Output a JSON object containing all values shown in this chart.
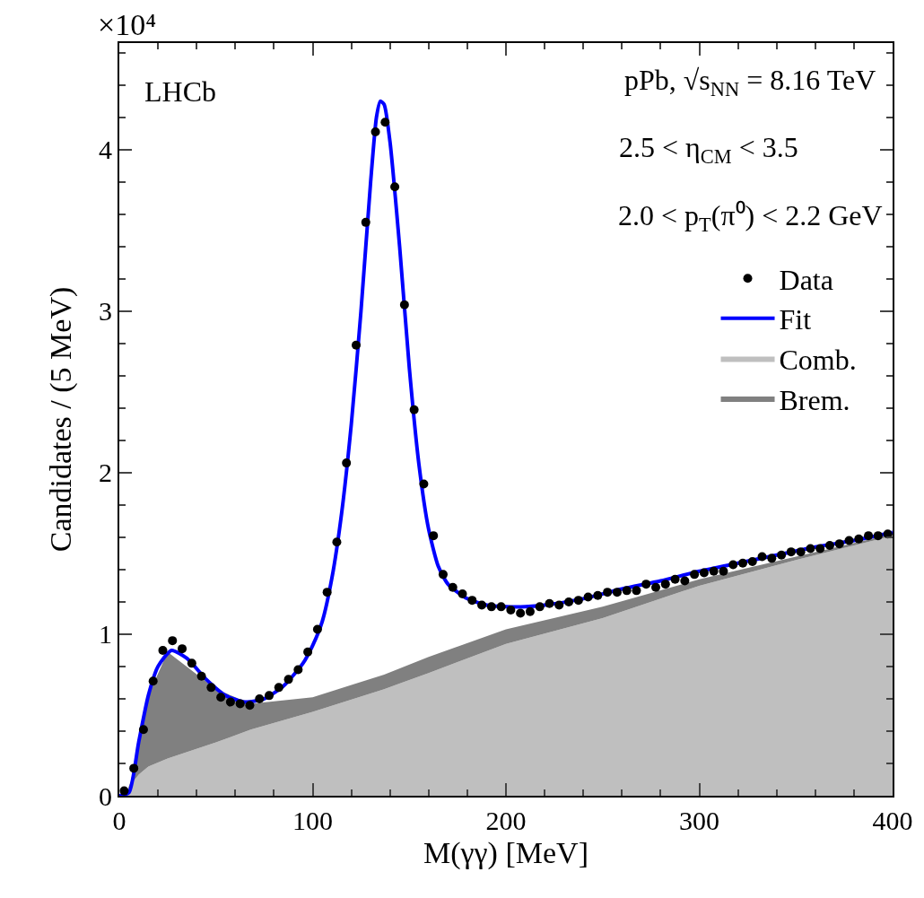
{
  "chart_data": {
    "type": "scatter",
    "xlabel": "M(γγ) [MeV]",
    "ylabel": "Candidates / (5 MeV)",
    "annotations": [
      "×10⁴",
      "LHCb",
      "pPb, √s$_{NN}$ = 8.16 TeV",
      "2.5 < η$_{CM}$ < 3.5",
      "2.0 < p$_{T}$(π⁰) < 2.2 GeV"
    ],
    "xlim": [
      0,
      400
    ],
    "xticks": [
      0,
      100,
      200,
      300,
      400
    ],
    "ylim": [
      0,
      4.66
    ],
    "yticks": [
      0,
      1,
      2,
      3,
      4
    ],
    "legend": "top right",
    "stacked": true,
    "series": [
      {
        "name": "Data",
        "marker": "circle",
        "color": "#000000",
        "x": [
          2.5,
          7.5,
          12.5,
          17.5,
          22.5,
          27.5,
          32.5,
          37.5,
          42.5,
          47.5,
          52.5,
          57.5,
          62.5,
          67.5,
          72.5,
          77.5,
          82.5,
          87.5,
          92.5,
          97.5,
          102.5,
          107.5,
          112.5,
          117.5,
          122.5,
          127.5,
          132.5,
          137.5,
          142.5,
          147.5,
          152.5,
          157.5,
          162.5,
          167.5,
          172.5,
          177.5,
          182.5,
          187.5,
          192.5,
          197.5,
          202.5,
          207.5,
          212.5,
          217.5,
          222.5,
          227.5,
          232.5,
          237.5,
          242.5,
          247.5,
          252.5,
          257.5,
          262.5,
          267.5,
          272.5,
          277.5,
          282.5,
          287.5,
          292.5,
          297.5,
          302.5,
          307.5,
          312.5,
          317.5,
          322.5,
          327.5,
          332.5,
          337.5,
          342.5,
          347.5,
          352.5,
          357.5,
          362.5,
          367.5,
          372.5,
          377.5,
          382.5,
          387.5,
          392.5,
          397.5
        ],
        "values": [
          0.03,
          0.17,
          0.41,
          0.71,
          0.9,
          0.96,
          0.91,
          0.82,
          0.74,
          0.67,
          0.61,
          0.58,
          0.57,
          0.56,
          0.6,
          0.62,
          0.67,
          0.72,
          0.78,
          0.89,
          1.03,
          1.26,
          1.57,
          2.06,
          2.79,
          3.55,
          4.11,
          4.17,
          3.77,
          3.04,
          2.39,
          1.93,
          1.61,
          1.37,
          1.29,
          1.25,
          1.21,
          1.18,
          1.17,
          1.17,
          1.15,
          1.13,
          1.14,
          1.17,
          1.19,
          1.18,
          1.2,
          1.21,
          1.23,
          1.24,
          1.26,
          1.26,
          1.27,
          1.27,
          1.31,
          1.29,
          1.31,
          1.34,
          1.33,
          1.37,
          1.38,
          1.39,
          1.39,
          1.43,
          1.44,
          1.45,
          1.48,
          1.47,
          1.49,
          1.51,
          1.51,
          1.53,
          1.53,
          1.55,
          1.56,
          1.58,
          1.59,
          1.61,
          1.61,
          1.62
        ]
      },
      {
        "name": "Fit",
        "type": "line",
        "line_style": "solid",
        "color": "#0000ff",
        "x": [
          0,
          5,
          10,
          15,
          20,
          27,
          35,
          45,
          55,
          65,
          75,
          85,
          95,
          100,
          105,
          110,
          115,
          120,
          125,
          130,
          133,
          135,
          137,
          140,
          145,
          150,
          155,
          160,
          165,
          170,
          180,
          190,
          200,
          210,
          220,
          240,
          260,
          280,
          300,
          320,
          340,
          360,
          380,
          400
        ],
        "values": [
          0,
          0.02,
          0.33,
          0.62,
          0.8,
          0.9,
          0.85,
          0.72,
          0.62,
          0.58,
          0.6,
          0.68,
          0.82,
          0.93,
          1.08,
          1.35,
          1.75,
          2.3,
          3.0,
          3.8,
          4.2,
          4.3,
          4.28,
          4.05,
          3.4,
          2.65,
          2.05,
          1.65,
          1.42,
          1.31,
          1.22,
          1.18,
          1.17,
          1.17,
          1.18,
          1.22,
          1.28,
          1.33,
          1.39,
          1.44,
          1.49,
          1.54,
          1.58,
          1.63
        ]
      },
      {
        "name": "Comb.",
        "type": "area",
        "color": "#bfbfbf",
        "x": [
          0,
          3,
          6,
          10,
          15,
          25,
          50,
          68,
          100,
          137,
          160,
          200,
          250,
          300,
          350,
          400
        ],
        "values": [
          0,
          0,
          0.07,
          0.13,
          0.18,
          0.23,
          0.33,
          0.41,
          0.52,
          0.66,
          0.76,
          0.94,
          1.1,
          1.3,
          1.46,
          1.61
        ]
      },
      {
        "name": "Brem.",
        "type": "area",
        "color": "#808080",
        "x": [
          0,
          3,
          6,
          10,
          15,
          25,
          50,
          68,
          100,
          137,
          160,
          200,
          250,
          300,
          350,
          400
        ],
        "values": [
          0,
          0,
          0.02,
          0.2,
          0.44,
          0.66,
          0.33,
          0.16,
          0.09,
          0.09,
          0.1,
          0.09,
          0.07,
          0.04,
          0.02,
          0.01
        ]
      }
    ]
  }
}
